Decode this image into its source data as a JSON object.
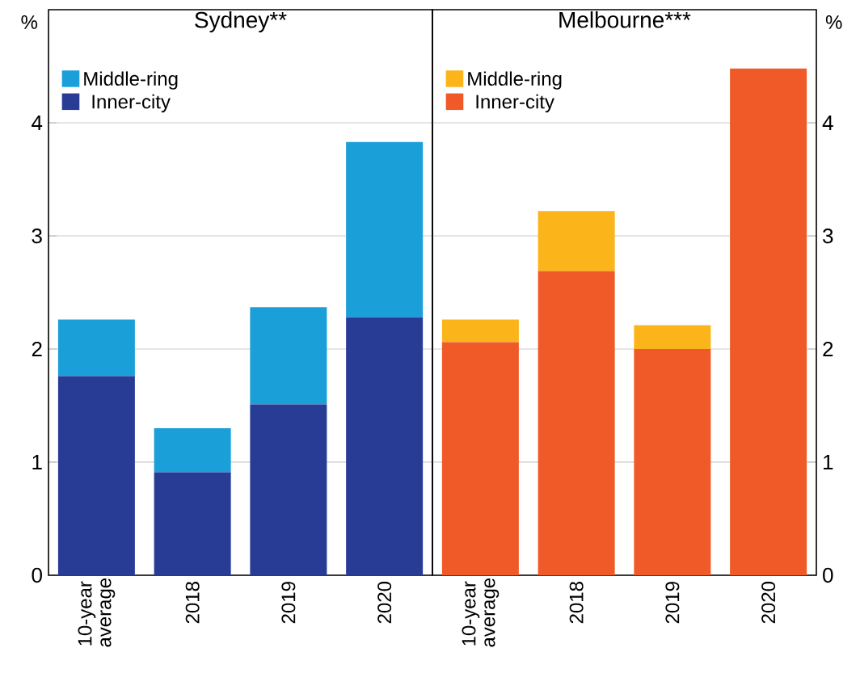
{
  "chart_data": [
    {
      "type": "bar",
      "title": "Sydney**",
      "ylabel": "%",
      "stacked": true,
      "legend": "top left",
      "grid": "y",
      "categories": [
        "10-year average",
        "2018",
        "2019",
        "2020"
      ],
      "series": [
        {
          "name": "Inner-city",
          "color": "#283c96",
          "values": [
            1.76,
            0.91,
            1.51,
            2.28
          ]
        },
        {
          "name": "Middle-ring",
          "color": "#1a9fd9",
          "values": [
            0.5,
            0.39,
            0.86,
            1.55
          ]
        }
      ],
      "ylim": [
        0,
        5
      ],
      "yticks": [
        0,
        1,
        2,
        3,
        4
      ]
    },
    {
      "type": "bar",
      "title": "Melbourne***",
      "ylabel": "%",
      "stacked": true,
      "legend": "top left",
      "grid": "y",
      "categories": [
        "10-year average",
        "2018",
        "2019",
        "2020"
      ],
      "series": [
        {
          "name": "Inner-city",
          "color": "#f05a28",
          "values": [
            2.06,
            2.69,
            2.0,
            4.48
          ]
        },
        {
          "name": "Middle-ring",
          "color": "#fbb41a",
          "values": [
            0.2,
            0.53,
            0.21,
            0
          ]
        }
      ],
      "ylim": [
        0,
        5
      ],
      "yticks": [
        0,
        1,
        2,
        3,
        4
      ]
    }
  ]
}
